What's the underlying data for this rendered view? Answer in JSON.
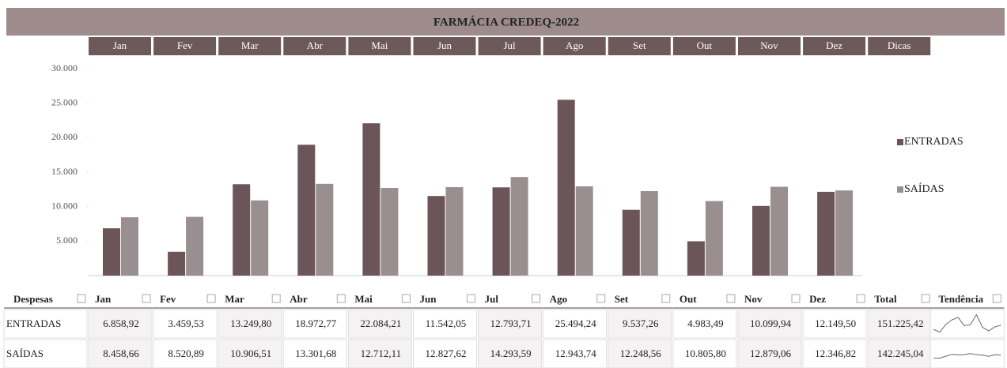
{
  "header": {
    "title": "FARMÁCIA CREDEQ-2022",
    "tabs": [
      "Jan",
      "Fev",
      "Mar",
      "Abr",
      "Mai",
      "Jun",
      "Jul",
      "Ago",
      "Set",
      "Out",
      "Nov",
      "Dez",
      "Dicas"
    ]
  },
  "chart_data": {
    "type": "bar",
    "categories": [
      "Jan",
      "Fev",
      "Mar",
      "Abr",
      "Mai",
      "Jun",
      "Jul",
      "Ago",
      "Set",
      "Out",
      "Nov",
      "Dez"
    ],
    "series": [
      {
        "name": "ENTRADAS",
        "color": "#6b5558",
        "values": [
          6858.92,
          3459.53,
          13249.8,
          18972.77,
          22084.21,
          11542.05,
          12793.71,
          25494.24,
          9537.26,
          4983.49,
          10099.94,
          12149.5
        ]
      },
      {
        "name": "SAÍDAS",
        "color": "#9a8f90",
        "values": [
          8458.66,
          8520.89,
          10906.51,
          13301.68,
          12712.11,
          12827.62,
          14293.59,
          12943.74,
          12248.56,
          10805.8,
          12879.06,
          12346.82
        ]
      }
    ],
    "ylim": [
      0,
      30000
    ],
    "yticks": [
      {
        "value": 5000,
        "label": "5.000"
      },
      {
        "value": 10000,
        "label": "10.000"
      },
      {
        "value": 15000,
        "label": "15.000"
      },
      {
        "value": 20000,
        "label": "20.000"
      },
      {
        "value": 25000,
        "label": "25.000"
      },
      {
        "value": 30000,
        "label": "30.000"
      }
    ],
    "legend": "right"
  },
  "table": {
    "headers": [
      "Despesas",
      "Jan",
      "Fev",
      "Mar",
      "Abr",
      "Mai",
      "Jun",
      "Jul",
      "Ago",
      "Set",
      "Out",
      "Nov",
      "Dez",
      "Total",
      "Tendência"
    ],
    "rows": [
      [
        "ENTRADAS",
        "6.858,92",
        "3.459,53",
        "13.249,80",
        "18.972,77",
        "22.084,21",
        "11.542,05",
        "12.793,71",
        "25.494,24",
        "9.537,26",
        "4.983,49",
        "10.099,94",
        "12.149,50",
        "151.225,42"
      ],
      [
        "SAÍDAS",
        "8.458,66",
        "8.520,89",
        "10.906,51",
        "13.301,68",
        "12.712,11",
        "12.827,62",
        "14.293,59",
        "12.943,74",
        "12.248,56",
        "10.805,80",
        "12.879,06",
        "12.346,82",
        "142.245,04"
      ]
    ]
  }
}
